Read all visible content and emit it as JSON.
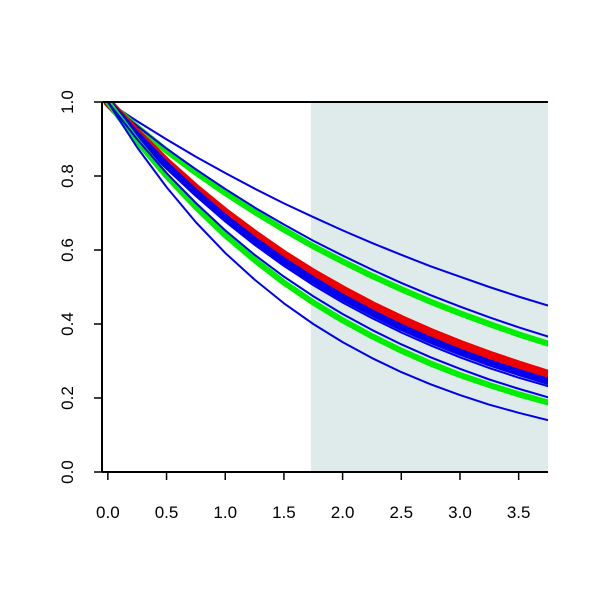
{
  "chart_data": {
    "type": "line",
    "title": "",
    "xlabel": "",
    "ylabel": "",
    "xlim": [
      -0.05,
      3.75
    ],
    "ylim": [
      0.0,
      1.0
    ],
    "x_ticks": [
      {
        "value": 0.0,
        "label": "0.0"
      },
      {
        "value": 0.5,
        "label": "0.5"
      },
      {
        "value": 1.0,
        "label": "1.0"
      },
      {
        "value": 1.5,
        "label": "1.5"
      },
      {
        "value": 2.0,
        "label": "2.0"
      },
      {
        "value": 2.5,
        "label": "2.5"
      },
      {
        "value": 3.0,
        "label": "3.0"
      },
      {
        "value": 3.5,
        "label": "3.5"
      }
    ],
    "y_ticks": [
      {
        "value": 0.0,
        "label": "0.0"
      },
      {
        "value": 0.2,
        "label": "0.2"
      },
      {
        "value": 0.4,
        "label": "0.4"
      },
      {
        "value": 0.6,
        "label": "0.6"
      },
      {
        "value": 0.8,
        "label": "0.8"
      },
      {
        "value": 1.0,
        "label": "1.0"
      }
    ],
    "grid": false,
    "legend": "none",
    "shaded_region": {
      "x_from": 1.73,
      "x_to": 3.75,
      "color": "#dfebeb"
    },
    "colors": {
      "blue": "#0000ee",
      "green": "#00ee00",
      "red": "#ee0000",
      "axis": "#000000"
    },
    "x": [
      0.0,
      0.25,
      0.5,
      0.75,
      1.0,
      1.25,
      1.5,
      1.75,
      2.0,
      2.25,
      2.5,
      2.75,
      3.0,
      3.25,
      3.5,
      3.75
    ],
    "series": [
      {
        "color": "blue",
        "width": 2,
        "values": [
          1.0,
          0.948,
          0.899,
          0.852,
          0.808,
          0.766,
          0.726,
          0.689,
          0.653,
          0.619,
          0.587,
          0.556,
          0.528,
          0.5,
          0.474,
          0.45
        ]
      },
      {
        "color": "green",
        "width": 6,
        "values": [
          1.0,
          0.932,
          0.868,
          0.809,
          0.754,
          0.703,
          0.655,
          0.61,
          0.569,
          0.53,
          0.494,
          0.46,
          0.429,
          0.4,
          0.372,
          0.347
        ]
      },
      {
        "color": "blue",
        "width": 2,
        "values": [
          1.0,
          0.935,
          0.874,
          0.818,
          0.765,
          0.715,
          0.669,
          0.625,
          0.585,
          0.547,
          0.511,
          0.478,
          0.447,
          0.418,
          0.391,
          0.366
        ]
      },
      {
        "color": "red",
        "width": 9,
        "values": [
          1.0,
          0.915,
          0.837,
          0.766,
          0.701,
          0.642,
          0.587,
          0.537,
          0.492,
          0.45,
          0.412,
          0.377,
          0.345,
          0.316,
          0.289,
          0.264
        ]
      },
      {
        "color": "blue",
        "width": 7,
        "values": [
          1.0,
          0.91,
          0.829,
          0.755,
          0.687,
          0.626,
          0.57,
          0.519,
          0.472,
          0.43,
          0.391,
          0.356,
          0.324,
          0.295,
          0.269,
          0.245
        ]
      },
      {
        "color": "blue",
        "width": 2,
        "values": [
          1.0,
          0.907,
          0.823,
          0.746,
          0.677,
          0.614,
          0.557,
          0.505,
          0.458,
          0.416,
          0.377,
          0.342,
          0.31,
          0.281,
          0.255,
          0.232
        ]
      },
      {
        "color": "green",
        "width": 6,
        "values": [
          1.0,
          0.894,
          0.8,
          0.716,
          0.64,
          0.573,
          0.512,
          0.458,
          0.41,
          0.367,
          0.328,
          0.293,
          0.262,
          0.235,
          0.21,
          0.188
        ]
      },
      {
        "color": "blue",
        "width": 2,
        "values": [
          1.0,
          0.899,
          0.808,
          0.727,
          0.653,
          0.587,
          0.528,
          0.475,
          0.427,
          0.384,
          0.345,
          0.31,
          0.279,
          0.25,
          0.225,
          0.202
        ]
      },
      {
        "color": "blue",
        "width": 2,
        "values": [
          1.0,
          0.877,
          0.77,
          0.675,
          0.592,
          0.52,
          0.456,
          0.4,
          0.351,
          0.308,
          0.27,
          0.237,
          0.208,
          0.182,
          0.16,
          0.14
        ]
      }
    ]
  }
}
